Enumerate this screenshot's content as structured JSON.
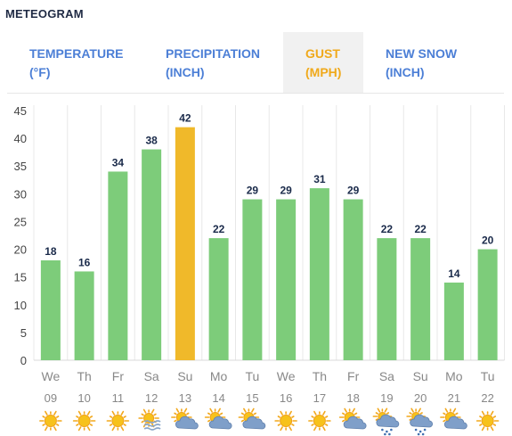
{
  "header": {
    "title": "METEOGRAM"
  },
  "tabs": [
    {
      "line1": "TEMPERATURE",
      "line2": "(°F)",
      "active": false
    },
    {
      "line1": "PRECIPITATION",
      "line2": "(INCH)",
      "active": false
    },
    {
      "line1": "GUST",
      "line2": "(MPH)",
      "active": true
    },
    {
      "line1": "NEW SNOW",
      "line2": "(INCH)",
      "active": false
    }
  ],
  "colors": {
    "bar": "#7dcc7a",
    "highlight": "#f0b92a",
    "tab_text": "#4c7fd6",
    "tab_active": "#f0a91b"
  },
  "chart_data": {
    "type": "bar",
    "ylim": [
      0,
      45
    ],
    "yticks": [
      0,
      5,
      10,
      15,
      20,
      25,
      30,
      35,
      40,
      45
    ],
    "grid": "vertical",
    "categories": [
      {
        "day": "We",
        "date": "09"
      },
      {
        "day": "Th",
        "date": "10"
      },
      {
        "day": "Fr",
        "date": "11"
      },
      {
        "day": "Sa",
        "date": "12"
      },
      {
        "day": "Su",
        "date": "13"
      },
      {
        "day": "Mo",
        "date": "14"
      },
      {
        "day": "Tu",
        "date": "15"
      },
      {
        "day": "We",
        "date": "16"
      },
      {
        "day": "Th",
        "date": "17"
      },
      {
        "day": "Fr",
        "date": "18"
      },
      {
        "day": "Sa",
        "date": "19"
      },
      {
        "day": "Su",
        "date": "20"
      },
      {
        "day": "Mo",
        "date": "21"
      },
      {
        "day": "Tu",
        "date": "22"
      }
    ],
    "values": [
      18,
      16,
      34,
      38,
      42,
      22,
      29,
      29,
      31,
      29,
      22,
      22,
      14,
      20
    ],
    "highlight_index": 4,
    "icons": [
      "sun-icon",
      "sun-icon",
      "sun-icon",
      "sun-haze-icon",
      "partly-cloudy-icon",
      "partly-cloudy-icon",
      "partly-cloudy-icon",
      "sun-icon",
      "sun-icon",
      "partly-cloudy-icon",
      "rain-cloud-icon",
      "rain-cloud-icon",
      "partly-cloudy-icon",
      "sun-icon"
    ]
  }
}
